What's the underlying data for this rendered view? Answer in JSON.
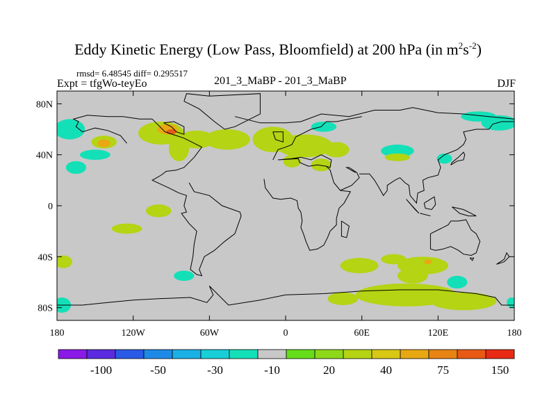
{
  "chart_data": {
    "type": "heatmap",
    "title": "Eddy Kinetic Energy (Low Pass, Bloomfield) at 200 hPa (in m",
    "title_units_sup1": "2",
    "title_units_mid": "s",
    "title_units_sup2": "-2",
    "title_end": ")",
    "stats_label": "rmsd= 6.48545 diff= 0.295517",
    "expt_label": "Expt = tfgWo-teyEo",
    "center_label": "201_3_MaBP - 201_3_MaBP",
    "season_label": "DJF",
    "x_range": [
      -180,
      180
    ],
    "y_range": [
      -90,
      90
    ],
    "x_ticks": [
      {
        "value": -180,
        "label": "180"
      },
      {
        "value": -120,
        "label": "120W"
      },
      {
        "value": -60,
        "label": "60W"
      },
      {
        "value": 0,
        "label": "0"
      },
      {
        "value": 60,
        "label": "60E"
      },
      {
        "value": 120,
        "label": "120E"
      },
      {
        "value": 180,
        "label": "180"
      }
    ],
    "y_ticks": [
      {
        "value": 80,
        "label": "80N"
      },
      {
        "value": 40,
        "label": "40N"
      },
      {
        "value": 0,
        "label": "0"
      },
      {
        "value": -40,
        "label": "40S"
      },
      {
        "value": -80,
        "label": "80S"
      }
    ],
    "colorbar": {
      "colors": [
        "#8a1ae8",
        "#5a2be0",
        "#2a5ae6",
        "#1e8ae8",
        "#1ab0e6",
        "#18cfd8",
        "#14e0b8",
        "#c8c8c8",
        "#66dd1a",
        "#8ed81a",
        "#b4d414",
        "#d8c814",
        "#e8a814",
        "#e88414",
        "#e85a14",
        "#e82a14"
      ],
      "labels": [
        {
          "boundary": 2,
          "label": "-100"
        },
        {
          "boundary": 4,
          "label": "-50"
        },
        {
          "boundary": 6,
          "label": "-30"
        },
        {
          "boundary": 8,
          "label": "-10"
        },
        {
          "boundary": 10,
          "label": "20"
        },
        {
          "boundary": 12,
          "label": "40"
        },
        {
          "boundary": 14,
          "label": "75"
        },
        {
          "boundary": 16,
          "label": "150"
        }
      ]
    },
    "field_blobs": [
      {
        "lon": -170,
        "lat": 60,
        "rlon": 12,
        "rlat": 8,
        "level": "-10"
      },
      {
        "lon": -143,
        "lat": 50,
        "rlon": 10,
        "rlat": 5,
        "level": "20"
      },
      {
        "lon": -143,
        "lat": 49,
        "rlon": 5,
        "rlat": 3,
        "level": "40"
      },
      {
        "lon": -150,
        "lat": 40,
        "rlon": 12,
        "rlat": 4,
        "level": "-10"
      },
      {
        "lon": -147,
        "lat": 40,
        "rlon": 5,
        "rlat": 2,
        "level": "-30"
      },
      {
        "lon": -165,
        "lat": 30,
        "rlon": 8,
        "rlat": 5,
        "level": "-10"
      },
      {
        "lon": -98,
        "lat": 57,
        "rlon": 18,
        "rlat": 9,
        "level": "20"
      },
      {
        "lon": -93,
        "lat": 60,
        "rlon": 8,
        "rlat": 4,
        "level": "40"
      },
      {
        "lon": -90,
        "lat": 58,
        "rlon": 4,
        "rlat": 2,
        "level": "75"
      },
      {
        "lon": -70,
        "lat": 52,
        "rlon": 14,
        "rlat": 7,
        "level": "20"
      },
      {
        "lon": -84,
        "lat": 45,
        "rlon": 8,
        "rlat": 10,
        "level": "20"
      },
      {
        "lon": -46,
        "lat": 52,
        "rlon": 18,
        "rlat": 8,
        "level": "20"
      },
      {
        "lon": -10,
        "lat": 52,
        "rlon": 16,
        "rlat": 10,
        "level": "20"
      },
      {
        "lon": 15,
        "lat": 47,
        "rlon": 22,
        "rlat": 9,
        "level": "20"
      },
      {
        "lon": 40,
        "lat": 44,
        "rlon": 10,
        "rlat": 6,
        "level": "20"
      },
      {
        "lon": 5,
        "lat": 35,
        "rlon": 7,
        "rlat": 5,
        "level": "20"
      },
      {
        "lon": 28,
        "lat": 32,
        "rlon": 8,
        "rlat": 5,
        "level": "20"
      },
      {
        "lon": 30,
        "lat": 62,
        "rlon": 10,
        "rlat": 4,
        "level": "-10"
      },
      {
        "lon": 88,
        "lat": 43,
        "rlon": 13,
        "rlat": 5,
        "level": "-10"
      },
      {
        "lon": 88,
        "lat": 38,
        "rlon": 10,
        "rlat": 3,
        "level": "20"
      },
      {
        "lon": 168,
        "lat": 65,
        "rlon": 14,
        "rlat": 6,
        "level": "-10"
      },
      {
        "lon": 152,
        "lat": 70,
        "rlon": 14,
        "rlat": 4,
        "level": "-10"
      },
      {
        "lon": 125,
        "lat": 37,
        "rlon": 6,
        "rlat": 4,
        "level": "-10"
      },
      {
        "lon": -100,
        "lat": -4,
        "rlon": 10,
        "rlat": 5,
        "level": "20"
      },
      {
        "lon": -125,
        "lat": -18,
        "rlon": 12,
        "rlat": 4,
        "level": "20"
      },
      {
        "lon": -175,
        "lat": -44,
        "rlon": 7,
        "rlat": 5,
        "level": "20"
      },
      {
        "lon": -176,
        "lat": -78,
        "rlon": 7,
        "rlat": 6,
        "level": "-10"
      },
      {
        "lon": -80,
        "lat": -55,
        "rlon": 8,
        "rlat": 4,
        "level": "-10"
      },
      {
        "lon": 58,
        "lat": -47,
        "rlon": 15,
        "rlat": 6,
        "level": "20"
      },
      {
        "lon": 85,
        "lat": -42,
        "rlon": 10,
        "rlat": 4,
        "level": "20"
      },
      {
        "lon": 108,
        "lat": -47,
        "rlon": 20,
        "rlat": 7,
        "level": "20"
      },
      {
        "lon": 112,
        "lat": -44,
        "rlon": 3,
        "rlat": 2,
        "level": "40"
      },
      {
        "lon": 135,
        "lat": -60,
        "rlon": 8,
        "rlat": 5,
        "level": "-10"
      },
      {
        "lon": 95,
        "lat": -70,
        "rlon": 40,
        "rlat": 9,
        "level": "20"
      },
      {
        "lon": 140,
        "lat": -75,
        "rlon": 26,
        "rlat": 7,
        "level": "20"
      },
      {
        "lon": 100,
        "lat": -55,
        "rlon": 12,
        "rlat": 6,
        "level": "20"
      },
      {
        "lon": 45,
        "lat": -73,
        "rlon": 12,
        "rlat": 5,
        "level": "20"
      },
      {
        "lon": 178,
        "lat": -76,
        "rlon": 4,
        "rlat": 4,
        "level": "-10"
      }
    ],
    "coastlines": [
      [
        [
          -80,
          82
        ],
        [
          -78,
          88
        ],
        [
          -60,
          86
        ],
        [
          -20,
          88
        ],
        [
          -20,
          72
        ],
        [
          -40,
          62
        ],
        [
          -48,
          60
        ],
        [
          -56,
          66
        ],
        [
          -68,
          76
        ],
        [
          -80,
          82
        ]
      ],
      [
        [
          -96,
          65
        ],
        [
          -90,
          62
        ],
        [
          -86,
          58
        ],
        [
          -80,
          56
        ],
        [
          -80,
          62
        ],
        [
          -88,
          66
        ],
        [
          -96,
          65
        ]
      ],
      [
        [
          -105,
          68
        ],
        [
          -95,
          58
        ],
        [
          -80,
          53
        ],
        [
          -66,
          46
        ],
        [
          -72,
          38
        ],
        [
          -80,
          30
        ],
        [
          -86,
          28
        ],
        [
          -94,
          27
        ],
        [
          -98,
          24
        ],
        [
          -105,
          20
        ],
        [
          -92,
          14
        ],
        [
          -84,
          10
        ],
        [
          -78,
          8
        ],
        [
          -80,
          0
        ],
        [
          -78,
          -5
        ],
        [
          -82,
          -6
        ],
        [
          -76,
          -14
        ],
        [
          -70,
          -20
        ],
        [
          -72,
          -30
        ],
        [
          -73,
          -40
        ],
        [
          -75,
          -50
        ],
        [
          -70,
          -54
        ],
        [
          -66,
          -55
        ],
        [
          -68,
          -50
        ],
        [
          -64,
          -40
        ],
        [
          -56,
          -35
        ],
        [
          -48,
          -28
        ],
        [
          -40,
          -22
        ],
        [
          -35,
          -8
        ],
        [
          -36,
          -5
        ],
        [
          -50,
          0
        ],
        [
          -60,
          8
        ],
        [
          -72,
          11
        ],
        [
          -76,
          18
        ]
      ],
      [
        [
          -40,
          70
        ],
        [
          -20,
          65
        ],
        [
          0,
          65
        ],
        [
          12,
          66
        ],
        [
          28,
          72
        ],
        [
          50,
          70
        ],
        [
          70,
          75
        ],
        [
          80,
          75
        ],
        [
          90,
          75
        ],
        [
          100,
          77
        ],
        [
          120,
          73
        ],
        [
          140,
          72
        ],
        [
          160,
          70
        ],
        [
          180,
          68
        ]
      ],
      [
        [
          -10,
          58
        ],
        [
          -2,
          58
        ],
        [
          -2,
          50
        ],
        [
          -8,
          52
        ],
        [
          -10,
          58
        ]
      ],
      [
        [
          -10,
          36
        ],
        [
          -6,
          44
        ],
        [
          0,
          46
        ],
        [
          5,
          48
        ],
        [
          8,
          54
        ],
        [
          12,
          56
        ],
        [
          20,
          60
        ],
        [
          28,
          62
        ],
        [
          32,
          66
        ],
        [
          40,
          66
        ],
        [
          50,
          68
        ],
        [
          60,
          70
        ]
      ],
      [
        [
          -6,
          36
        ],
        [
          5,
          37
        ],
        [
          12,
          38
        ],
        [
          20,
          36
        ],
        [
          28,
          40
        ],
        [
          36,
          36
        ],
        [
          35,
          30
        ],
        [
          32,
          31
        ],
        [
          25,
          32
        ],
        [
          18,
          31
        ],
        [
          11,
          34
        ],
        [
          10,
          37
        ],
        [
          -6,
          36
        ]
      ],
      [
        [
          -17,
          21
        ],
        [
          -16,
          14
        ],
        [
          -10,
          6
        ],
        [
          -4,
          5
        ],
        [
          4,
          6
        ],
        [
          9,
          4
        ],
        [
          10,
          -2
        ],
        [
          12,
          -5
        ],
        [
          13,
          -12
        ],
        [
          12,
          -17
        ],
        [
          14,
          -22
        ],
        [
          16,
          -28
        ],
        [
          19,
          -35
        ],
        [
          25,
          -34
        ],
        [
          30,
          -31
        ],
        [
          33,
          -25
        ],
        [
          35,
          -20
        ],
        [
          40,
          -15
        ],
        [
          40,
          -10
        ],
        [
          42,
          -2
        ],
        [
          46,
          2
        ],
        [
          51,
          11
        ],
        [
          43,
          12
        ],
        [
          38,
          18
        ],
        [
          35,
          28
        ],
        [
          32,
          31
        ]
      ],
      [
        [
          43,
          12
        ],
        [
          52,
          16
        ],
        [
          58,
          22
        ],
        [
          56,
          26
        ],
        [
          50,
          30
        ],
        [
          48,
          30
        ],
        [
          55,
          26
        ]
      ],
      [
        [
          58,
          25
        ],
        [
          66,
          25
        ],
        [
          70,
          20
        ],
        [
          73,
          15
        ],
        [
          77,
          8
        ],
        [
          80,
          12
        ],
        [
          80,
          16
        ],
        [
          86,
          20
        ],
        [
          90,
          22
        ],
        [
          94,
          18
        ],
        [
          97,
          16
        ],
        [
          98,
          8
        ],
        [
          103,
          2
        ],
        [
          104,
          10
        ],
        [
          109,
          12
        ],
        [
          108,
          20
        ],
        [
          112,
          22
        ],
        [
          120,
          24
        ],
        [
          122,
          30
        ],
        [
          120,
          36
        ],
        [
          125,
          40
        ],
        [
          130,
          42
        ],
        [
          135,
          44
        ],
        [
          140,
          48
        ],
        [
          142,
          52
        ],
        [
          140,
          58
        ],
        [
          150,
          60
        ],
        [
          160,
          60
        ],
        [
          163,
          64
        ],
        [
          170,
          66
        ],
        [
          180,
          66
        ]
      ],
      [
        [
          130,
          32
        ],
        [
          135,
          35
        ],
        [
          140,
          36
        ],
        [
          141,
          40
        ],
        [
          140,
          42
        ],
        [
          136,
          38
        ],
        [
          131,
          34
        ],
        [
          130,
          32
        ]
      ],
      [
        [
          44,
          -12
        ],
        [
          50,
          -16
        ],
        [
          48,
          -25
        ],
        [
          44,
          -24
        ],
        [
          44,
          -12
        ]
      ],
      [
        [
          114,
          -22
        ],
        [
          114,
          -34
        ],
        [
          118,
          -35
        ],
        [
          124,
          -34
        ],
        [
          130,
          -32
        ],
        [
          136,
          -35
        ],
        [
          140,
          -38
        ],
        [
          146,
          -39
        ],
        [
          150,
          -37
        ],
        [
          153,
          -28
        ],
        [
          150,
          -22
        ],
        [
          146,
          -19
        ],
        [
          142,
          -11
        ],
        [
          136,
          -12
        ],
        [
          130,
          -12
        ],
        [
          128,
          -15
        ],
        [
          122,
          -18
        ],
        [
          114,
          -22
        ]
      ],
      [
        [
          145,
          -41
        ],
        [
          148,
          -41
        ],
        [
          147,
          -43
        ],
        [
          145,
          -41
        ]
      ],
      [
        [
          166,
          -46
        ],
        [
          172,
          -42
        ],
        [
          174,
          -37
        ],
        [
          176,
          -40
        ],
        [
          172,
          -44
        ],
        [
          166,
          -46
        ]
      ],
      [
        [
          95,
          5
        ],
        [
          105,
          -6
        ],
        [
          102,
          -3
        ],
        [
          95,
          5
        ]
      ],
      [
        [
          106,
          -6
        ],
        [
          114,
          -8
        ],
        [
          110,
          -7
        ],
        [
          106,
          -6
        ]
      ],
      [
        [
          109,
          2
        ],
        [
          117,
          7
        ],
        [
          118,
          1
        ],
        [
          115,
          -3
        ],
        [
          110,
          -2
        ],
        [
          109,
          2
        ]
      ],
      [
        [
          131,
          -1
        ],
        [
          140,
          -3
        ],
        [
          150,
          -8
        ],
        [
          144,
          -8
        ],
        [
          137,
          -6
        ],
        [
          131,
          -1
        ]
      ],
      [
        [
          -60,
          -63
        ],
        [
          -57,
          -70
        ],
        [
          -62,
          -76
        ],
        [
          -75,
          -72
        ],
        [
          -100,
          -73
        ],
        [
          -120,
          -74
        ],
        [
          -140,
          -76
        ],
        [
          -160,
          -78
        ],
        [
          -180,
          -78
        ]
      ],
      [
        [
          -60,
          -63
        ],
        [
          -45,
          -78
        ],
        [
          -20,
          -74
        ],
        [
          0,
          -70
        ],
        [
          30,
          -69
        ],
        [
          60,
          -67
        ],
        [
          90,
          -66
        ],
        [
          120,
          -66
        ],
        [
          150,
          -69
        ],
        [
          165,
          -72
        ],
        [
          170,
          -78
        ],
        [
          180,
          -78
        ]
      ],
      [
        [
          -125,
          49
        ],
        [
          -130,
          55
        ],
        [
          -140,
          59
        ],
        [
          -150,
          61
        ],
        [
          -160,
          58
        ],
        [
          -165,
          62
        ],
        [
          -163,
          66
        ],
        [
          -167,
          68
        ],
        [
          -156,
          71
        ],
        [
          -140,
          70
        ],
        [
          -128,
          70
        ],
        [
          -115,
          68
        ],
        [
          -105,
          68
        ]
      ]
    ]
  }
}
